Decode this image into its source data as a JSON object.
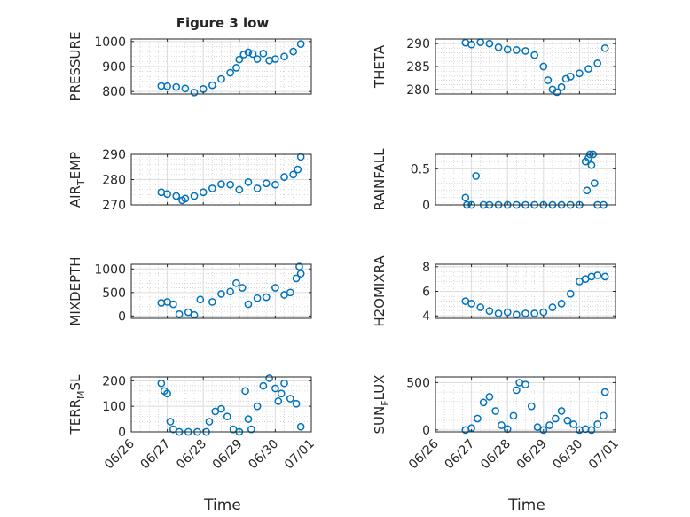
{
  "figure": {
    "title": "Figure 3 low",
    "xlabel": "Time"
  },
  "colors": {
    "marker": "#0072BD",
    "axis": "#262626",
    "grid": "#c8c8c8"
  },
  "chart_data": [
    {
      "type": "scatter",
      "id": "pressure",
      "ylabel": "PRESSURE",
      "ylabel_sub": "",
      "ylim": [
        790,
        1010
      ],
      "yticks": [
        800,
        900,
        1000
      ],
      "title": "Figure 3 low",
      "x": [
        "06/26 20:00",
        "06/27 00:00",
        "06/27 06:00",
        "06/27 12:00",
        "06/27 18:00",
        "06/28 00:00",
        "06/28 06:00",
        "06/28 12:00",
        "06/28 18:00",
        "06/28 22:00",
        "06/29 00:00",
        "06/29 03:00",
        "06/29 06:00",
        "06/29 09:00",
        "06/29 12:00",
        "06/29 16:00",
        "06/29 20:00",
        "06/30 00:00",
        "06/30 06:00",
        "06/30 12:00",
        "06/30 17:00"
      ],
      "y": [
        822,
        821,
        818,
        812,
        796,
        810,
        825,
        850,
        875,
        895,
        928,
        948,
        957,
        950,
        930,
        952,
        924,
        930,
        940,
        960,
        990
      ]
    },
    {
      "type": "scatter",
      "id": "theta",
      "ylabel": "THETA",
      "ylabel_sub": "",
      "ylim": [
        279,
        291
      ],
      "yticks": [
        280,
        285,
        290
      ],
      "x": [
        "06/26 20:00",
        "06/27 00:00",
        "06/27 06:00",
        "06/27 12:00",
        "06/27 18:00",
        "06/28 00:00",
        "06/28 06:00",
        "06/28 12:00",
        "06/28 18:00",
        "06/29 00:00",
        "06/29 03:00",
        "06/29 06:00",
        "06/29 09:00",
        "06/29 12:00",
        "06/29 15:00",
        "06/29 18:00",
        "06/30 00:00",
        "06/30 06:00",
        "06/30 12:00",
        "06/30 17:00"
      ],
      "y": [
        290.2,
        289.8,
        290.3,
        290.0,
        289.2,
        288.7,
        288.6,
        288.4,
        287.5,
        285.0,
        282.0,
        280.0,
        279.4,
        280.5,
        282.3,
        282.8,
        283.5,
        284.5,
        285.7,
        289.0
      ]
    },
    {
      "type": "scatter",
      "id": "air_temp",
      "ylabel": "AIR",
      "ylabel_sub": "T",
      "ylabel_suffix": "EMP",
      "ylim": [
        270,
        290
      ],
      "yticks": [
        270,
        280,
        290
      ],
      "x": [
        "06/26 20:00",
        "06/27 00:00",
        "06/27 06:00",
        "06/27 10:00",
        "06/27 12:00",
        "06/27 18:00",
        "06/28 00:00",
        "06/28 06:00",
        "06/28 12:00",
        "06/28 18:00",
        "06/29 00:00",
        "06/29 06:00",
        "06/29 12:00",
        "06/29 18:00",
        "06/30 00:00",
        "06/30 06:00",
        "06/30 12:00",
        "06/30 15:00",
        "06/30 17:00"
      ],
      "y": [
        275.0,
        274.3,
        273.5,
        271.8,
        272.5,
        273.5,
        275.0,
        276.5,
        278.2,
        278.0,
        276.0,
        279.0,
        276.5,
        278.5,
        278.0,
        281.0,
        282.0,
        284.0,
        289.0
      ]
    },
    {
      "type": "scatter",
      "id": "rainfall",
      "ylabel": "RAINFALL",
      "ylabel_sub": "",
      "ylim": [
        0,
        0.7
      ],
      "yticks": [
        0,
        0.5
      ],
      "ytick_labels": [
        "0",
        "0.5"
      ],
      "x": [
        "06/26 20:00",
        "06/26 21:00",
        "06/27 00:00",
        "06/27 03:00",
        "06/27 08:00",
        "06/27 12:00",
        "06/27 18:00",
        "06/28 00:00",
        "06/28 06:00",
        "06/28 12:00",
        "06/28 18:00",
        "06/29 00:00",
        "06/29 06:00",
        "06/29 12:00",
        "06/29 18:00",
        "06/30 00:00",
        "06/30 04:00",
        "06/30 05:00",
        "06/30 06:00",
        "06/30 07:00",
        "06/30 08:00",
        "06/30 09:00",
        "06/30 10:00",
        "06/30 12:00",
        "06/30 16:00"
      ],
      "y": [
        0.1,
        0,
        0,
        0.4,
        0,
        0,
        0,
        0,
        0,
        0,
        0,
        0,
        0,
        0,
        0,
        0,
        0.6,
        0.2,
        0.65,
        0.7,
        0.55,
        0.7,
        0.3,
        0,
        0
      ]
    },
    {
      "type": "scatter",
      "id": "mixdepth",
      "ylabel": "MIXDEPTH",
      "ylabel_sub": "",
      "ylim": [
        -50,
        1100
      ],
      "yticks": [
        0,
        500,
        1000
      ],
      "x": [
        "06/26 20:00",
        "06/27 00:00",
        "06/27 04:00",
        "06/27 08:00",
        "06/27 14:00",
        "06/27 18:00",
        "06/27 22:00",
        "06/28 06:00",
        "06/28 12:00",
        "06/28 18:00",
        "06/28 22:00",
        "06/29 02:00",
        "06/29 06:00",
        "06/29 12:00",
        "06/29 18:00",
        "06/30 00:00",
        "06/30 06:00",
        "06/30 10:00",
        "06/30 14:00",
        "06/30 16:00",
        "06/30 17:00"
      ],
      "y": [
        280,
        300,
        250,
        40,
        80,
        20,
        350,
        300,
        470,
        520,
        700,
        600,
        250,
        380,
        400,
        600,
        450,
        500,
        800,
        1050,
        900
      ]
    },
    {
      "type": "scatter",
      "id": "h2omixra",
      "ylabel": "H2OMIXRA",
      "ylabel_sub": "",
      "ylim": [
        3.8,
        8.2
      ],
      "yticks": [
        4,
        6,
        8
      ],
      "x": [
        "06/26 20:00",
        "06/27 00:00",
        "06/27 06:00",
        "06/27 12:00",
        "06/27 18:00",
        "06/28 00:00",
        "06/28 06:00",
        "06/28 12:00",
        "06/28 18:00",
        "06/29 00:00",
        "06/29 06:00",
        "06/29 12:00",
        "06/29 18:00",
        "06/30 00:00",
        "06/30 04:00",
        "06/30 08:00",
        "06/30 12:00",
        "06/30 17:00"
      ],
      "y": [
        5.2,
        5.0,
        4.7,
        4.4,
        4.2,
        4.3,
        4.1,
        4.2,
        4.2,
        4.3,
        4.7,
        5.0,
        5.8,
        6.8,
        7.0,
        7.2,
        7.3,
        7.2
      ]
    },
    {
      "type": "scatter",
      "id": "terr_msl",
      "ylabel": "TERR",
      "ylabel_sub": "M",
      "ylabel_suffix": "SL",
      "ylim": [
        0,
        215
      ],
      "yticks": [
        0,
        100,
        200
      ],
      "x": [
        "06/26 20:00",
        "06/26 22:00",
        "06/27 00:00",
        "06/27 02:00",
        "06/27 04:00",
        "06/27 08:00",
        "06/27 14:00",
        "06/27 20:00",
        "06/28 02:00",
        "06/28 04:00",
        "06/28 08:00",
        "06/28 12:00",
        "06/28 16:00",
        "06/28 20:00",
        "06/29 00:00",
        "06/29 04:00",
        "06/29 06:00",
        "06/29 08:00",
        "06/29 12:00",
        "06/29 16:00",
        "06/29 20:00",
        "06/30 00:00",
        "06/30 02:00",
        "06/30 04:00",
        "06/30 06:00",
        "06/30 10:00",
        "06/30 14:00",
        "06/30 17:00"
      ],
      "y": [
        190,
        160,
        150,
        40,
        10,
        0,
        0,
        0,
        0,
        40,
        80,
        90,
        60,
        10,
        0,
        160,
        50,
        10,
        100,
        180,
        210,
        170,
        120,
        150,
        190,
        130,
        110,
        20
      ]
    },
    {
      "type": "scatter",
      "id": "sun_flux",
      "ylabel": "SUN",
      "ylabel_sub": "F",
      "ylabel_suffix": "LUX",
      "ylim": [
        -20,
        560
      ],
      "yticks": [
        0,
        500
      ],
      "x": [
        "06/26 20:00",
        "06/27 00:00",
        "06/27 04:00",
        "06/27 08:00",
        "06/27 12:00",
        "06/27 16:00",
        "06/27 20:00",
        "06/28 00:00",
        "06/28 04:00",
        "06/28 06:00",
        "06/28 08:00",
        "06/28 12:00",
        "06/28 16:00",
        "06/28 20:00",
        "06/29 00:00",
        "06/29 04:00",
        "06/29 08:00",
        "06/29 12:00",
        "06/29 16:00",
        "06/29 20:00",
        "06/30 00:00",
        "06/30 04:00",
        "06/30 08:00",
        "06/30 12:00",
        "06/30 16:00",
        "06/30 17:00"
      ],
      "y": [
        0,
        20,
        120,
        290,
        350,
        200,
        50,
        10,
        150,
        420,
        500,
        480,
        250,
        30,
        0,
        50,
        120,
        200,
        100,
        60,
        0,
        10,
        0,
        60,
        150,
        400
      ]
    }
  ],
  "xaxis": {
    "range": [
      "06/26 00:00",
      "07/01 00:00"
    ],
    "ticks": [
      "06/26",
      "06/27",
      "06/28",
      "06/29",
      "06/30",
      "07/01"
    ]
  }
}
